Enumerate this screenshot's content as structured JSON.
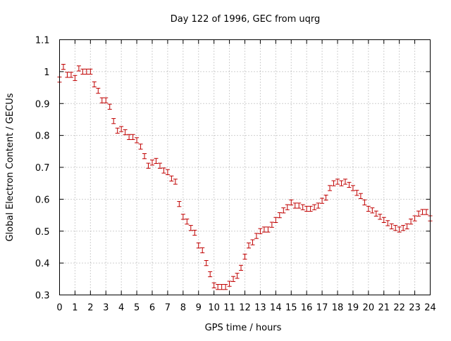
{
  "chart_data": {
    "type": "scatter",
    "title": "Day 122 of 1996, GEC from uqrg",
    "xlabel": "GPS time / hours",
    "ylabel": "Global Electron Content / GECUs",
    "xlim": [
      0,
      24
    ],
    "ylim": [
      0.3,
      1.1
    ],
    "xticks": [
      "0",
      "1",
      "2",
      "3",
      "4",
      "5",
      "6",
      "7",
      "8",
      "9",
      "10",
      "11",
      "12",
      "13",
      "14",
      "15",
      "16",
      "17",
      "18",
      "19",
      "20",
      "21",
      "22",
      "23",
      "24"
    ],
    "yticks": [
      "0.3",
      "0.4",
      "0.5",
      "0.6",
      "0.7",
      "0.8",
      "0.9",
      "1",
      "1.1"
    ],
    "grid": true,
    "legend": "none",
    "color": "#c00000",
    "errorbar_half_width": 0.008,
    "series": [
      {
        "x": [
          0,
          0.25,
          0.5,
          0.75,
          1,
          1.25,
          1.5,
          1.75,
          2,
          2.25,
          2.5,
          2.75,
          3,
          3.25,
          3.5,
          3.75,
          4,
          4.25,
          4.5,
          4.75,
          5,
          5.25,
          5.5,
          5.75,
          6,
          6.25,
          6.5,
          6.75,
          7,
          7.25,
          7.5,
          7.75,
          8,
          8.25,
          8.5,
          8.75,
          9,
          9.25,
          9.5,
          9.75,
          10,
          10.25,
          10.5,
          10.75,
          11,
          11.25,
          11.5,
          11.75,
          12,
          12.25,
          12.5,
          12.75,
          13,
          13.25,
          13.5,
          13.75,
          14,
          14.25,
          14.5,
          14.75,
          15,
          15.25,
          15.5,
          15.75,
          16,
          16.25,
          16.5,
          16.75,
          17,
          17.25,
          17.5,
          17.75,
          18,
          18.25,
          18.5,
          18.75,
          19,
          19.25,
          19.5,
          19.75,
          20,
          20.25,
          20.5,
          20.75,
          21,
          21.25,
          21.5,
          21.75,
          22,
          22.25,
          22.5,
          22.75,
          23,
          23.25,
          23.5,
          23.75,
          24
        ],
        "y": [
          0.975,
          1.015,
          0.99,
          0.99,
          0.98,
          1.01,
          1.0,
          1.0,
          1.0,
          0.96,
          0.94,
          0.91,
          0.91,
          0.89,
          0.845,
          0.815,
          0.82,
          0.81,
          0.795,
          0.795,
          0.785,
          0.765,
          0.735,
          0.705,
          0.715,
          0.72,
          0.705,
          0.69,
          0.685,
          0.665,
          0.655,
          0.585,
          0.545,
          0.53,
          0.51,
          0.495,
          0.455,
          0.44,
          0.4,
          0.365,
          0.33,
          0.325,
          0.325,
          0.325,
          0.335,
          0.35,
          0.36,
          0.385,
          0.42,
          0.455,
          0.465,
          0.485,
          0.5,
          0.505,
          0.505,
          0.52,
          0.535,
          0.55,
          0.565,
          0.575,
          0.59,
          0.58,
          0.58,
          0.575,
          0.57,
          0.57,
          0.575,
          0.58,
          0.595,
          0.605,
          0.635,
          0.65,
          0.655,
          0.65,
          0.655,
          0.645,
          0.635,
          0.62,
          0.61,
          0.59,
          0.57,
          0.565,
          0.555,
          0.545,
          0.535,
          0.525,
          0.515,
          0.51,
          0.505,
          0.51,
          0.515,
          0.53,
          0.54,
          0.555,
          0.56,
          0.56,
          0.54
        ]
      }
    ]
  }
}
